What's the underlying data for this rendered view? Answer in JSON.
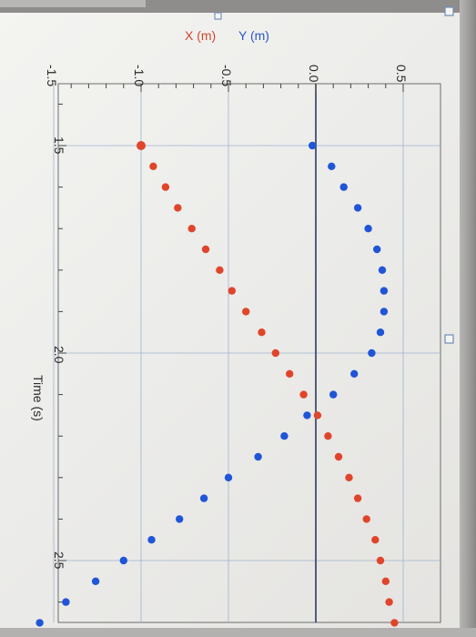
{
  "chart_data": {
    "type": "scatter",
    "rotated": "90deg-clockwise",
    "xlabel": "Time (s)",
    "ylabel": "",
    "xlim": [
      1.3,
      2.72
    ],
    "ylim": [
      -1.55,
      0.62
    ],
    "x_ticks": [
      "1.5",
      "2.0",
      "2.5"
    ],
    "y_ticks": [
      "0.5",
      "0.0",
      "-0.5",
      "-1.0",
      "-1.5"
    ],
    "grid": true,
    "legend": [
      "X (m)",
      "Y (m)"
    ],
    "series": [
      {
        "name": "X (m)",
        "color": "#e0452b",
        "x": [
          1.5,
          1.55,
          1.6,
          1.65,
          1.7,
          1.75,
          1.8,
          1.85,
          1.9,
          1.95,
          2.0,
          2.05,
          2.1,
          2.15,
          2.2,
          2.25,
          2.3,
          2.35,
          2.4,
          2.45,
          2.5,
          2.55,
          2.6,
          2.65
        ],
        "values": [
          -1.0,
          -0.93,
          -0.86,
          -0.79,
          -0.71,
          -0.63,
          -0.55,
          -0.48,
          -0.4,
          -0.31,
          -0.23,
          -0.15,
          -0.07,
          0.01,
          0.07,
          0.13,
          0.19,
          0.24,
          0.29,
          0.34,
          0.37,
          0.4,
          0.42,
          0.45
        ]
      },
      {
        "name": "Y (m)",
        "color": "#1f55d6",
        "x": [
          1.5,
          1.55,
          1.6,
          1.65,
          1.7,
          1.75,
          1.8,
          1.85,
          1.9,
          1.95,
          2.0,
          2.05,
          2.1,
          2.15,
          2.2,
          2.25,
          2.3,
          2.35,
          2.4,
          2.45,
          2.5,
          2.55,
          2.6,
          2.65
        ],
        "values": [
          -0.02,
          0.09,
          0.16,
          0.24,
          0.3,
          0.35,
          0.38,
          0.39,
          0.39,
          0.37,
          0.32,
          0.22,
          0.1,
          -0.05,
          -0.18,
          -0.33,
          -0.5,
          -0.64,
          -0.78,
          -0.94,
          -1.1,
          -1.26,
          -1.43,
          -1.58
        ]
      }
    ]
  }
}
